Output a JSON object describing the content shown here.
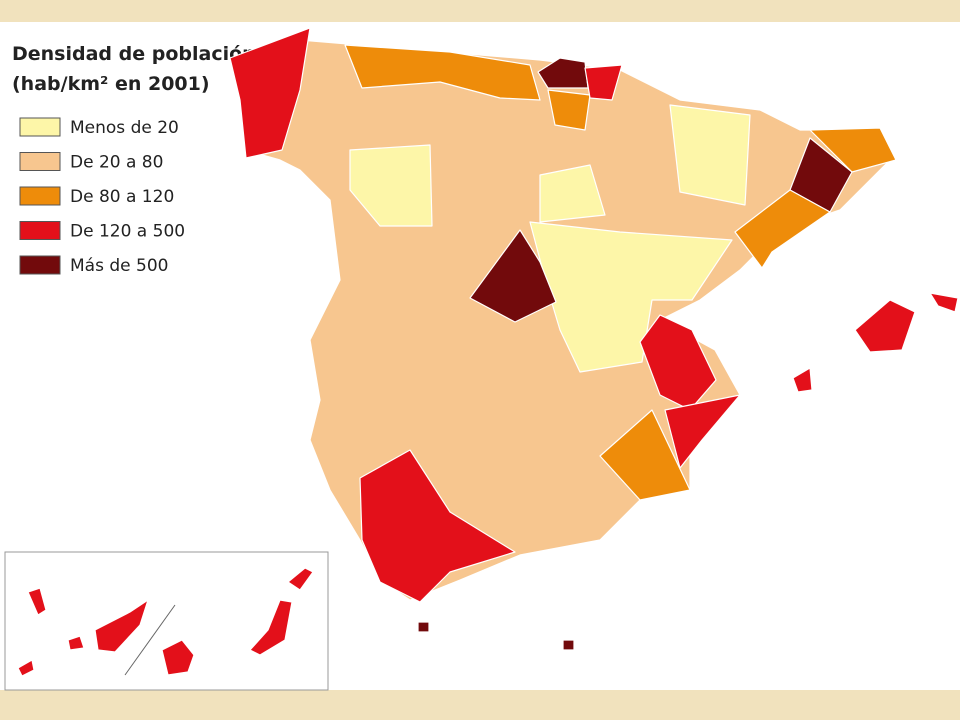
{
  "title": [
    "Densidad de población",
    "(hab/km² en 2001)"
  ],
  "legend": [
    {
      "label": "Menos de 20",
      "color": "#fdf6a8"
    },
    {
      "label": "De 20 a 80",
      "color": "#f7c68f"
    },
    {
      "label": "De 80 a 120",
      "color": "#ee8c0a"
    },
    {
      "label": "De 120 a 500",
      "color": "#e3101a"
    },
    {
      "label": "Más de 500",
      "color": "#720a0c"
    }
  ]
}
